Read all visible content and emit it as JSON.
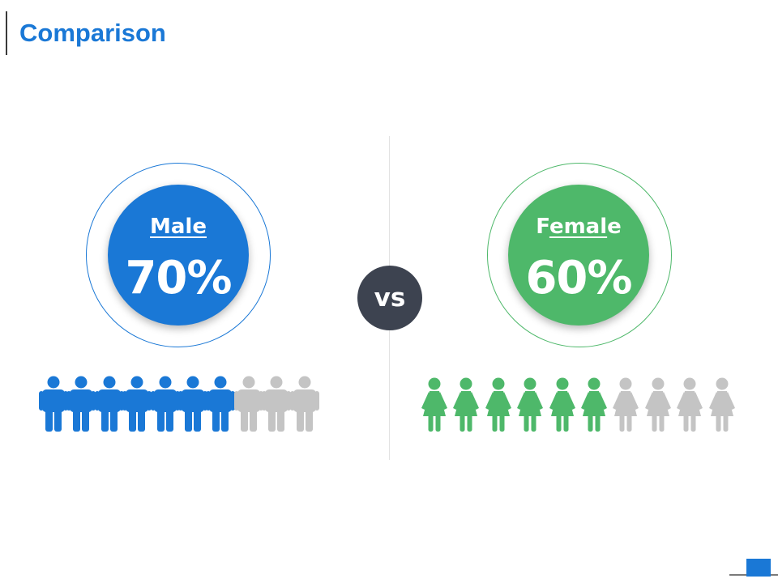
{
  "title": "Comparison",
  "colors": {
    "male": "#1a78d6",
    "female": "#4eb86a",
    "inactive": "#c4c4c4",
    "vs_bg": "#3d4350",
    "title": "#1a78d6"
  },
  "male": {
    "label": "Male",
    "value": "70%",
    "filled": 7,
    "total": 10,
    "icon": "male-person-icon"
  },
  "female": {
    "label_parts": [
      "F",
      "emal",
      "e"
    ],
    "label": "Female",
    "value": "60%",
    "filled": 6,
    "total": 10,
    "icon": "female-person-icon"
  },
  "vs_text": "vs"
}
